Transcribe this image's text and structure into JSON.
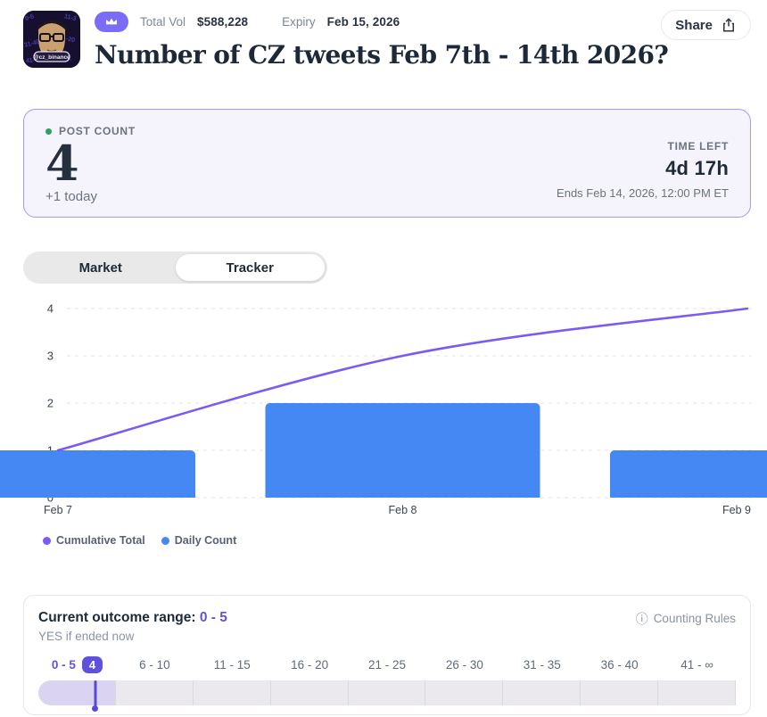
{
  "header": {
    "avatar_handle": "@cz_binance",
    "total_vol_label": "Total Vol",
    "total_vol_value": "$588,228",
    "expiry_label": "Expiry",
    "expiry_value": "Feb 15, 2026",
    "share_label": "Share",
    "title": "Number of CZ tweets Feb 7th - 14th 2026?"
  },
  "stat_card": {
    "post_count_label": "POST COUNT",
    "post_count_value": "4",
    "post_count_delta": "+1 today",
    "time_left_label": "TIME LEFT",
    "time_left_value": "4d 17h",
    "ends_text": "Ends Feb 14, 2026, 12:00 PM ET"
  },
  "tabs": [
    {
      "label": "Market",
      "active": false
    },
    {
      "label": "Tracker",
      "active": true
    }
  ],
  "chart_data": {
    "type": "bar",
    "categories": [
      "Feb 7",
      "Feb 8",
      "Feb 9"
    ],
    "series": [
      {
        "name": "Daily Count",
        "type": "bar",
        "color": "#4588f4",
        "values": [
          1,
          2,
          1
        ]
      },
      {
        "name": "Cumulative Total",
        "type": "line",
        "color": "#7c5bef",
        "values": [
          1,
          3,
          4
        ]
      }
    ],
    "legend": [
      {
        "label": "Cumulative Total",
        "color": "#7c5bef"
      },
      {
        "label": "Daily Count",
        "color": "#4588f4"
      }
    ],
    "title": "",
    "xlabel": "",
    "ylabel": "",
    "ylim": [
      0,
      4
    ],
    "yticks": [
      0,
      1,
      2,
      3,
      4
    ],
    "grid": "horizontal-dashed",
    "legend_position": "bottom-left"
  },
  "outcome_card": {
    "range_label": "Current outcome range:",
    "range_value": "0 - 5",
    "subtitle": "YES if ended now",
    "counting_rules_label": "Counting Rules",
    "current_value_badge": "4",
    "buckets": [
      "0 - 5",
      "6 - 10",
      "11 - 15",
      "16 - 20",
      "21 - 25",
      "26 - 30",
      "31 - 35",
      "36 - 40",
      "41 - ∞"
    ],
    "active_bucket_index": 0,
    "marker_fraction_of_track": 0.0815
  },
  "colors": {
    "accent_purple": "#6253d3",
    "line_purple": "#7c5bef",
    "bar_blue": "#4588f4",
    "badge_purple": "#7b6cf7",
    "stat_card_bg": "#f5f4fc",
    "stat_card_border": "#ab97ef",
    "green_dot": "#27a35f"
  }
}
